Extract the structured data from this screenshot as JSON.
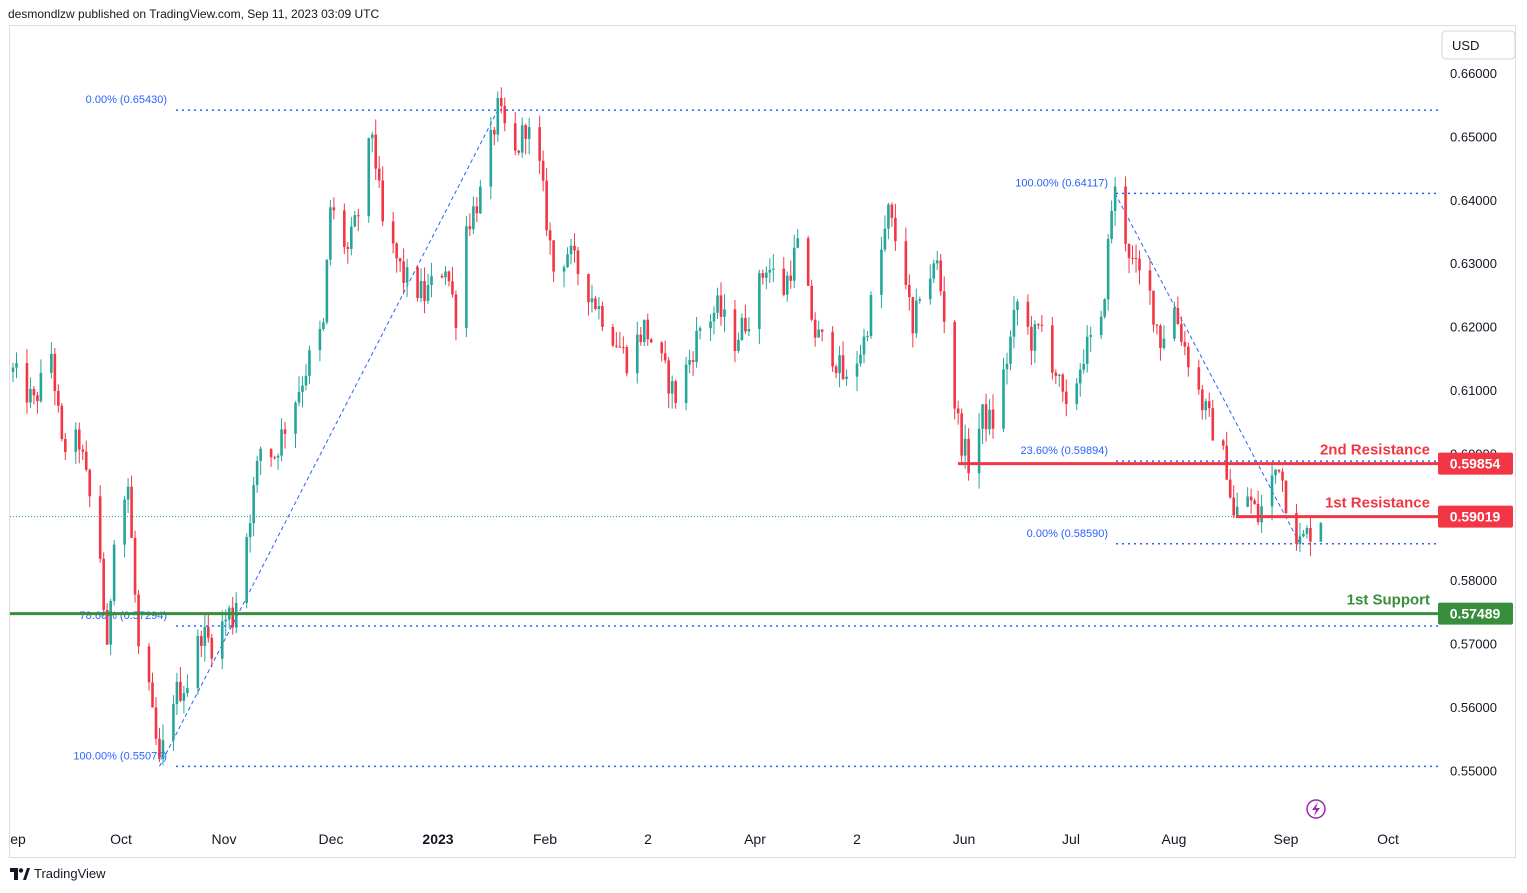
{
  "header": {
    "published_line": "desmondlzw published on TradingView.com, Sep 11, 2023 03:09 UTC"
  },
  "footer": {
    "brand": "TradingView"
  },
  "chart_data": {
    "type": "candlestick",
    "currency": "USD",
    "y_axis": {
      "ticks": [
        "0.66000",
        "0.65000",
        "0.64000",
        "0.63000",
        "0.62000",
        "0.61000",
        "0.60000",
        "0.58000",
        "0.57000",
        "0.56000",
        "0.55000"
      ],
      "tick_values": [
        0.66,
        0.65,
        0.64,
        0.63,
        0.62,
        0.61,
        0.6,
        0.58,
        0.57,
        0.56,
        0.55
      ]
    },
    "x_axis": {
      "labels": [
        {
          "text": "ep",
          "bold": false
        },
        {
          "text": "Oct",
          "bold": false
        },
        {
          "text": "Nov",
          "bold": false
        },
        {
          "text": "Dec",
          "bold": false
        },
        {
          "text": "2023",
          "bold": true
        },
        {
          "text": "Feb",
          "bold": false
        },
        {
          "text": "2",
          "bold": false
        },
        {
          "text": "Apr",
          "bold": false
        },
        {
          "text": "2",
          "bold": false
        },
        {
          "text": "Jun",
          "bold": false
        },
        {
          "text": "Jul",
          "bold": false
        },
        {
          "text": "Aug",
          "bold": false
        },
        {
          "text": "Sep",
          "bold": false
        },
        {
          "text": "Oct",
          "bold": false
        }
      ]
    },
    "current_price": 0.59019,
    "levels": [
      {
        "name": "2nd Resistance",
        "price": 0.59854,
        "label": "0.59854",
        "color": "#f23645"
      },
      {
        "name": "1st Resistance",
        "price": 0.59019,
        "label": "0.59019",
        "color": "#f23645"
      },
      {
        "name": "1st Support",
        "price": 0.57489,
        "label": "0.57489",
        "color": "#388e3c"
      }
    ],
    "fibonacci": [
      {
        "label": "0.00% (0.65430)",
        "price": 0.6543
      },
      {
        "label": "78.60% (0.57294)",
        "price": 0.57294
      },
      {
        "label": "100.00% (0.55079)",
        "price": 0.55079
      },
      {
        "label": "100.00% (0.64117)",
        "price": 0.64117
      },
      {
        "label": "23.60% (0.59894)",
        "price": 0.59894
      },
      {
        "label": "0.00% (0.58590)",
        "price": 0.5859
      }
    ],
    "trend_lines": [
      {
        "from": {
          "date": "2022-10-13",
          "price": 0.55079
        },
        "to": {
          "date": "2023-01-18",
          "price": 0.6543
        }
      },
      {
        "from": {
          "date": "2023-07-14",
          "price": 0.64117
        },
        "to": {
          "date": "2023-09-05",
          "price": 0.5859
        }
      }
    ],
    "pivots": [
      {
        "date": "2022-09-01",
        "price": 0.613
      },
      {
        "date": "2022-09-07",
        "price": 0.608
      },
      {
        "date": "2022-09-12",
        "price": 0.616
      },
      {
        "date": "2022-09-15",
        "price": 0.601
      },
      {
        "date": "2022-09-20",
        "price": 0.602
      },
      {
        "date": "2022-09-26",
        "price": 0.584
      },
      {
        "date": "2022-09-28",
        "price": 0.568
      },
      {
        "date": "2022-09-30",
        "price": 0.588
      },
      {
        "date": "2022-10-04",
        "price": 0.595
      },
      {
        "date": "2022-10-07",
        "price": 0.569
      },
      {
        "date": "2022-10-10",
        "price": 0.562
      },
      {
        "date": "2022-10-13",
        "price": 0.5508
      },
      {
        "date": "2022-10-17",
        "price": 0.562
      },
      {
        "date": "2022-10-21",
        "price": 0.564
      },
      {
        "date": "2022-10-25",
        "price": 0.572
      },
      {
        "date": "2022-10-28",
        "price": 0.57
      },
      {
        "date": "2022-11-02",
        "price": 0.575
      },
      {
        "date": "2022-11-03",
        "price": 0.574
      },
      {
        "date": "2022-11-11",
        "price": 0.601
      },
      {
        "date": "2022-11-15",
        "price": 0.6
      },
      {
        "date": "2022-11-21",
        "price": 0.609
      },
      {
        "date": "2022-11-25",
        "price": 0.615
      },
      {
        "date": "2022-11-29",
        "price": 0.62
      },
      {
        "date": "2022-12-01",
        "price": 0.639
      },
      {
        "date": "2022-12-06",
        "price": 0.632
      },
      {
        "date": "2022-12-09",
        "price": 0.638
      },
      {
        "date": "2022-12-13",
        "price": 0.651
      },
      {
        "date": "2022-12-16",
        "price": 0.636
      },
      {
        "date": "2022-12-22",
        "price": 0.628
      },
      {
        "date": "2022-12-28",
        "price": 0.625
      },
      {
        "date": "2023-01-03",
        "price": 0.63
      },
      {
        "date": "2023-01-06",
        "price": 0.622
      },
      {
        "date": "2023-01-09",
        "price": 0.636
      },
      {
        "date": "2023-01-13",
        "price": 0.641
      },
      {
        "date": "2023-01-18",
        "price": 0.6543
      },
      {
        "date": "2023-01-23",
        "price": 0.647
      },
      {
        "date": "2023-01-26",
        "price": 0.652
      },
      {
        "date": "2023-01-30",
        "price": 0.645
      },
      {
        "date": "2023-02-03",
        "price": 0.629
      },
      {
        "date": "2023-02-07",
        "price": 0.632
      },
      {
        "date": "2023-02-13",
        "price": 0.626
      },
      {
        "date": "2023-02-21",
        "price": 0.618
      },
      {
        "date": "2023-02-24",
        "price": 0.615
      },
      {
        "date": "2023-03-01",
        "price": 0.62
      },
      {
        "date": "2023-03-03",
        "price": 0.618
      },
      {
        "date": "2023-03-10",
        "price": 0.609
      },
      {
        "date": "2023-03-14",
        "price": 0.615
      },
      {
        "date": "2023-03-17",
        "price": 0.62
      },
      {
        "date": "2023-03-22",
        "price": 0.623
      },
      {
        "date": "2023-03-27",
        "price": 0.618
      },
      {
        "date": "2023-03-31",
        "price": 0.622
      },
      {
        "date": "2023-04-05",
        "price": 0.63
      },
      {
        "date": "2023-04-10",
        "price": 0.626
      },
      {
        "date": "2023-04-14",
        "price": 0.633
      },
      {
        "date": "2023-04-19",
        "price": 0.619
      },
      {
        "date": "2023-04-24",
        "price": 0.616
      },
      {
        "date": "2023-04-28",
        "price": 0.611
      },
      {
        "date": "2023-05-03",
        "price": 0.618
      },
      {
        "date": "2023-05-08",
        "price": 0.632
      },
      {
        "date": "2023-05-10",
        "price": 0.638
      },
      {
        "date": "2023-05-15",
        "price": 0.628
      },
      {
        "date": "2023-05-17",
        "price": 0.618
      },
      {
        "date": "2023-05-19",
        "price": 0.626
      },
      {
        "date": "2023-05-24",
        "price": 0.63
      },
      {
        "date": "2023-05-26",
        "price": 0.622
      },
      {
        "date": "2023-05-29",
        "price": 0.608
      },
      {
        "date": "2023-05-31",
        "price": 0.602
      },
      {
        "date": "2023-06-02",
        "price": 0.5985
      },
      {
        "date": "2023-06-06",
        "price": 0.606
      },
      {
        "date": "2023-06-09",
        "price": 0.605
      },
      {
        "date": "2023-06-13",
        "price": 0.615
      },
      {
        "date": "2023-06-16",
        "price": 0.624
      },
      {
        "date": "2023-06-20",
        "price": 0.618
      },
      {
        "date": "2023-06-23",
        "price": 0.62
      },
      {
        "date": "2023-06-27",
        "price": 0.613
      },
      {
        "date": "2023-06-30",
        "price": 0.606
      },
      {
        "date": "2023-07-05",
        "price": 0.616
      },
      {
        "date": "2023-07-10",
        "price": 0.62
      },
      {
        "date": "2023-07-13",
        "price": 0.639
      },
      {
        "date": "2023-07-14",
        "price": 0.6412
      },
      {
        "date": "2023-07-19",
        "price": 0.63
      },
      {
        "date": "2023-07-24",
        "price": 0.625
      },
      {
        "date": "2023-07-27",
        "price": 0.618
      },
      {
        "date": "2023-07-31",
        "price": 0.623
      },
      {
        "date": "2023-08-03",
        "price": 0.617
      },
      {
        "date": "2023-08-08",
        "price": 0.608
      },
      {
        "date": "2023-08-11",
        "price": 0.604
      },
      {
        "date": "2023-08-15",
        "price": 0.598
      },
      {
        "date": "2023-08-17",
        "price": 0.59
      },
      {
        "date": "2023-08-21",
        "price": 0.5935
      },
      {
        "date": "2023-08-24",
        "price": 0.59
      },
      {
        "date": "2023-08-28",
        "price": 0.596
      },
      {
        "date": "2023-08-30",
        "price": 0.599
      },
      {
        "date": "2023-09-01",
        "price": 0.593
      },
      {
        "date": "2023-09-05",
        "price": 0.586
      },
      {
        "date": "2023-09-08",
        "price": 0.588
      },
      {
        "date": "2023-09-11",
        "price": 0.5902
      }
    ],
    "colors": {
      "up": "#26a69a",
      "down": "#f23645",
      "fib": "#2962ff",
      "support": "#388e3c",
      "resistance": "#f23645"
    }
  }
}
